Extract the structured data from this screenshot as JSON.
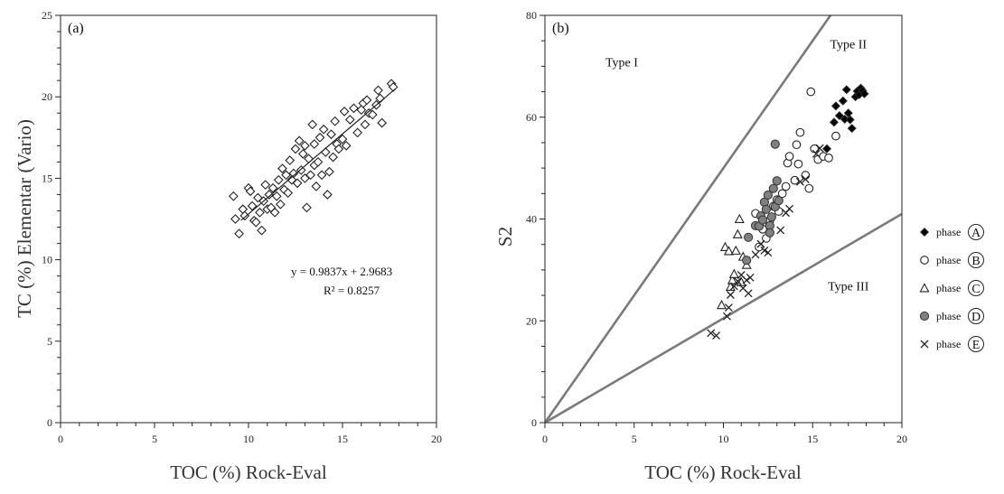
{
  "chart_data": [
    {
      "type": "scatter",
      "panel_label": "(a)",
      "xlabel": "TOC (%) Rock-Eval",
      "ylabel": "TC (%) Elementar (Vario)",
      "xlim": [
        0,
        20
      ],
      "ylim": [
        0,
        25
      ],
      "xticks": [
        "0",
        "5",
        "10",
        "15",
        "20"
      ],
      "yticks": [
        "0",
        "5",
        "10",
        "15",
        "20",
        "25"
      ],
      "marker": "diamond-open",
      "equation": "y = 0.9837x + 2.9683",
      "r2": "R² = 0.8257",
      "regression": {
        "slope": 0.9837,
        "intercept": 2.9683,
        "x_range": [
          9.6,
          17.8
        ]
      },
      "points": [
        [
          9.2,
          13.9
        ],
        [
          9.3,
          12.5
        ],
        [
          9.5,
          11.6
        ],
        [
          9.7,
          13.1
        ],
        [
          9.8,
          12.7
        ],
        [
          10.0,
          14.4
        ],
        [
          10.1,
          14.2
        ],
        [
          10.2,
          13.3
        ],
        [
          10.3,
          12.4
        ],
        [
          10.4,
          12.3
        ],
        [
          10.5,
          13.8
        ],
        [
          10.6,
          12.9
        ],
        [
          10.7,
          11.8
        ],
        [
          10.8,
          13.6
        ],
        [
          10.9,
          14.6
        ],
        [
          11.0,
          13.1
        ],
        [
          11.1,
          14.0
        ],
        [
          11.2,
          13.2
        ],
        [
          11.3,
          14.4
        ],
        [
          11.4,
          12.9
        ],
        [
          11.5,
          13.9
        ],
        [
          11.6,
          14.9
        ],
        [
          11.7,
          13.4
        ],
        [
          11.8,
          15.6
        ],
        [
          11.9,
          14.3
        ],
        [
          12.0,
          15.2
        ],
        [
          12.1,
          14.1
        ],
        [
          12.2,
          16.1
        ],
        [
          12.3,
          14.9
        ],
        [
          12.4,
          15.3
        ],
        [
          12.5,
          16.8
        ],
        [
          12.6,
          14.7
        ],
        [
          12.7,
          17.3
        ],
        [
          12.8,
          15.5
        ],
        [
          12.9,
          16.5
        ],
        [
          13.0,
          15.0
        ],
        [
          13.0,
          17.0
        ],
        [
          13.1,
          13.2
        ],
        [
          13.2,
          16.2
        ],
        [
          13.3,
          15.2
        ],
        [
          13.4,
          18.3
        ],
        [
          13.5,
          15.8
        ],
        [
          13.5,
          17.1
        ],
        [
          13.6,
          14.5
        ],
        [
          13.7,
          16.0
        ],
        [
          13.8,
          17.5
        ],
        [
          13.9,
          15.2
        ],
        [
          14.0,
          18.0
        ],
        [
          14.1,
          16.6
        ],
        [
          14.2,
          14.0
        ],
        [
          14.3,
          15.4
        ],
        [
          14.4,
          17.7
        ],
        [
          14.5,
          16.3
        ],
        [
          14.6,
          18.5
        ],
        [
          14.7,
          17.1
        ],
        [
          14.8,
          16.8
        ],
        [
          15.0,
          17.4
        ],
        [
          15.1,
          19.1
        ],
        [
          15.2,
          17.0
        ],
        [
          15.4,
          18.6
        ],
        [
          15.6,
          19.3
        ],
        [
          15.8,
          17.8
        ],
        [
          16.0,
          19.2
        ],
        [
          16.1,
          19.6
        ],
        [
          16.2,
          18.3
        ],
        [
          16.3,
          19.8
        ],
        [
          16.4,
          19.0
        ],
        [
          16.6,
          18.9
        ],
        [
          16.8,
          19.5
        ],
        [
          16.9,
          20.4
        ],
        [
          17.0,
          19.9
        ],
        [
          17.1,
          18.4
        ],
        [
          17.6,
          20.8
        ],
        [
          17.7,
          20.6
        ]
      ]
    },
    {
      "type": "scatter",
      "panel_label": "(b)",
      "xlabel": "TOC (%) Rock-Eval",
      "ylabel": "S2",
      "xlim": [
        0,
        20
      ],
      "ylim": [
        0,
        80
      ],
      "xticks": [
        "0",
        "5",
        "10",
        "15",
        "20"
      ],
      "yticks": [
        "0",
        "20",
        "40",
        "60",
        "80"
      ],
      "boundary_lines": [
        {
          "slope": 5.0,
          "intercept": 0,
          "color": "#7a7a7a"
        },
        {
          "slope": 2.05,
          "intercept": 0,
          "color": "#7a7a7a"
        }
      ],
      "region_labels": [
        {
          "text": "Type I",
          "x": 4.3,
          "y": 70
        },
        {
          "text": "Type II",
          "x": 17.0,
          "y": 73.5
        },
        {
          "text": "Type III",
          "x": 17.0,
          "y": 26
        }
      ],
      "legend_prefix": "phase",
      "series": [
        {
          "name": "A",
          "marker": "diamond-filled",
          "points": [
            [
              15.8,
              53.8
            ],
            [
              16.2,
              59.0
            ],
            [
              16.3,
              62.2
            ],
            [
              16.5,
              60.3
            ],
            [
              16.7,
              63.2
            ],
            [
              16.8,
              59.6
            ],
            [
              16.9,
              65.4
            ],
            [
              17.0,
              60.8
            ],
            [
              17.1,
              59.5
            ],
            [
              17.2,
              57.8
            ],
            [
              17.4,
              64.0
            ],
            [
              17.5,
              65.1
            ],
            [
              17.6,
              64.4
            ],
            [
              17.7,
              65.7
            ],
            [
              17.8,
              65.2
            ],
            [
              17.9,
              64.6
            ]
          ]
        },
        {
          "name": "B",
          "marker": "circle-open",
          "points": [
            [
              11.8,
              41.1
            ],
            [
              12.0,
              34.5
            ],
            [
              12.2,
              38.0
            ],
            [
              12.4,
              36.2
            ],
            [
              12.6,
              39.7
            ],
            [
              12.8,
              42.5
            ],
            [
              13.0,
              43.8
            ],
            [
              13.1,
              41.5
            ],
            [
              13.3,
              45.0
            ],
            [
              13.5,
              46.4
            ],
            [
              13.6,
              51.0
            ],
            [
              13.7,
              52.3
            ],
            [
              14.0,
              47.6
            ],
            [
              14.1,
              54.6
            ],
            [
              14.2,
              50.8
            ],
            [
              14.3,
              57.0
            ],
            [
              14.6,
              48.6
            ],
            [
              14.8,
              46.0
            ],
            [
              14.9,
              65.0
            ],
            [
              15.1,
              53.8
            ],
            [
              15.3,
              51.7
            ],
            [
              15.6,
              52.3
            ],
            [
              15.9,
              52.0
            ],
            [
              16.3,
              56.3
            ]
          ]
        },
        {
          "name": "C",
          "marker": "triangle-open",
          "points": [
            [
              9.9,
              23.1
            ],
            [
              10.1,
              34.5
            ],
            [
              10.3,
              33.7
            ],
            [
              10.4,
              26.7
            ],
            [
              10.5,
              28.0
            ],
            [
              10.6,
              29.2
            ],
            [
              10.7,
              33.8
            ],
            [
              10.8,
              37.0
            ],
            [
              10.9,
              40.0
            ],
            [
              11.0,
              27.6
            ],
            [
              11.1,
              32.6
            ],
            [
              11.3,
              31.0
            ]
          ]
        },
        {
          "name": "D",
          "marker": "circle-filled",
          "points": [
            [
              11.3,
              31.9
            ],
            [
              11.4,
              36.4
            ],
            [
              11.8,
              38.7
            ],
            [
              12.0,
              38.6
            ],
            [
              12.1,
              40.6
            ],
            [
              12.2,
              39.8
            ],
            [
              12.3,
              43.3
            ],
            [
              12.4,
              41.9
            ],
            [
              12.5,
              44.7
            ],
            [
              12.6,
              38.7
            ],
            [
              12.7,
              40.4
            ],
            [
              12.8,
              46.0
            ],
            [
              12.9,
              42.4
            ],
            [
              13.0,
              47.5
            ],
            [
              13.1,
              43.6
            ],
            [
              12.9,
              54.7
            ],
            [
              12.6,
              37.3
            ]
          ]
        },
        {
          "name": "E",
          "marker": "cross",
          "points": [
            [
              9.3,
              17.6
            ],
            [
              9.6,
              17.1
            ],
            [
              10.2,
              20.9
            ],
            [
              10.3,
              22.6
            ],
            [
              10.4,
              25.1
            ],
            [
              10.6,
              26.8
            ],
            [
              10.8,
              27.8
            ],
            [
              11.0,
              29.0
            ],
            [
              11.1,
              26.4
            ],
            [
              11.3,
              28.0
            ],
            [
              11.4,
              25.4
            ],
            [
              11.5,
              28.5
            ],
            [
              11.8,
              33.0
            ],
            [
              12.1,
              35.1
            ],
            [
              12.3,
              33.8
            ],
            [
              12.5,
              33.4
            ],
            [
              13.2,
              37.8
            ],
            [
              13.5,
              41.2
            ],
            [
              13.7,
              42.0
            ],
            [
              14.3,
              47.3
            ],
            [
              14.6,
              47.8
            ],
            [
              15.2,
              52.8
            ],
            [
              15.4,
              53.9
            ]
          ]
        }
      ]
    }
  ]
}
